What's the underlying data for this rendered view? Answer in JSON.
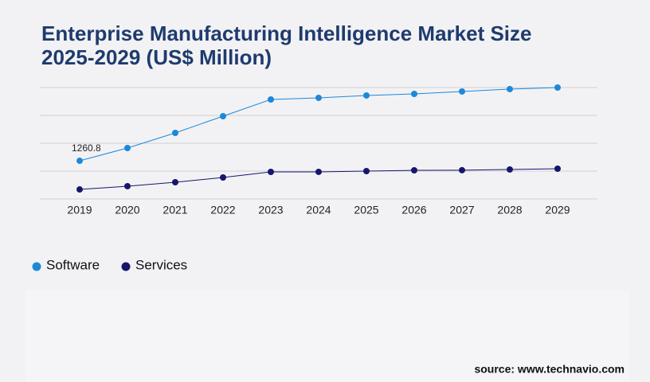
{
  "chart_data": {
    "type": "line",
    "title": "Enterprise Manufacturing Intelligence Market Size\n2025-2029 (US$ Million)",
    "source": "source: www.technavio.com",
    "categories": [
      "2019",
      "2020",
      "2021",
      "2022",
      "2023",
      "2024",
      "2025",
      "2026",
      "2027",
      "2028",
      "2029"
    ],
    "ylim": [
      0,
      3680
    ],
    "series": [
      {
        "name": "Software",
        "color": "#1e88d8",
        "values": [
          1260.8,
          1682,
          2182,
          2734,
          3286,
          3339,
          3418,
          3470,
          3549,
          3628,
          3680
        ],
        "value_labels": [
          "1260.8",
          null,
          null,
          null,
          null,
          null,
          null,
          null,
          null,
          null,
          null
        ]
      },
      {
        "name": "Services",
        "color": "#16166b",
        "values": [
          315,
          421,
          552,
          710,
          894,
          895,
          920,
          946,
          950,
          973,
          999
        ]
      }
    ]
  }
}
